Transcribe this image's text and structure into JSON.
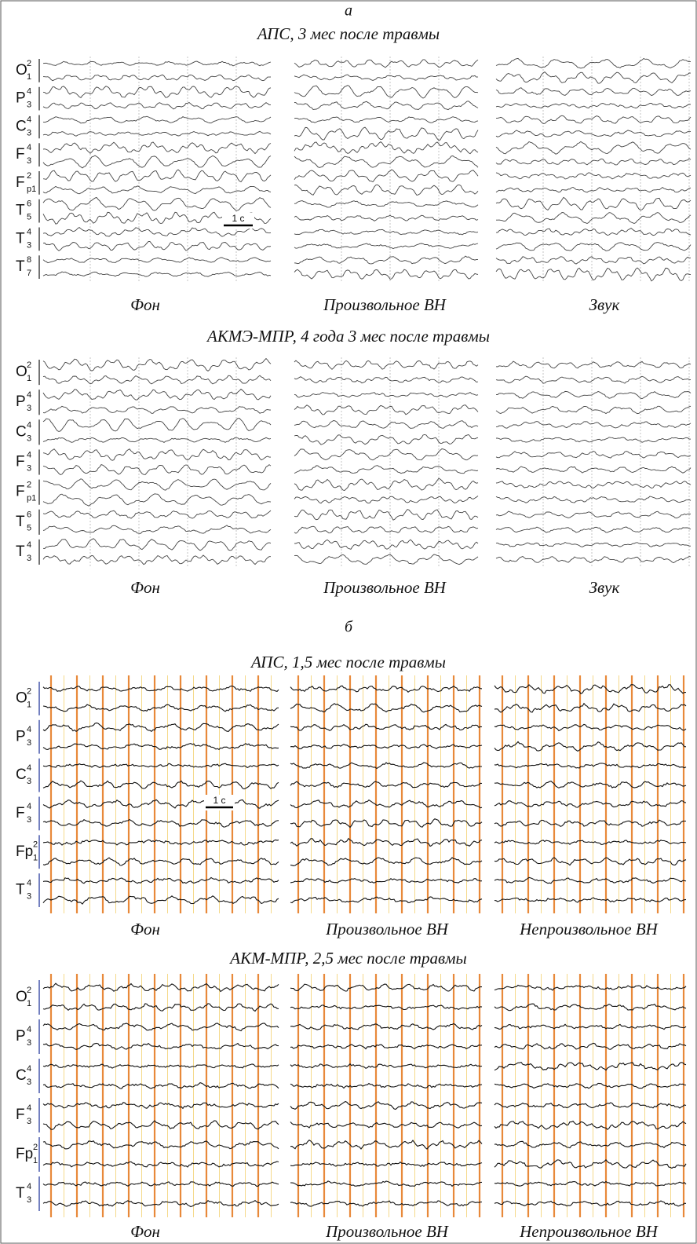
{
  "figure": {
    "sections": [
      {
        "label": "а",
        "rows": [
          {
            "title": "АПС, 3 мес после травмы",
            "panels": [
              "Фон",
              "Произвольное ВН",
              "Звук"
            ],
            "scale": "1 с",
            "channels": [
              {
                "base": "O",
                "sup": "2",
                "sub": "1"
              },
              {
                "base": "P",
                "sup": "4",
                "sub": "3"
              },
              {
                "base": "C",
                "sup": "4",
                "sub": "3"
              },
              {
                "base": "F",
                "sup": "4",
                "sub": "3"
              },
              {
                "base": "F",
                "sup": "2",
                "sub": "p1"
              },
              {
                "base": "T",
                "sup": "6",
                "sub": "5"
              },
              {
                "base": "T",
                "sup": "4",
                "sub": "3"
              },
              {
                "base": "T",
                "sup": "8",
                "sub": "7"
              }
            ]
          },
          {
            "title": "АКМЭ-МПР, 4 года 3 мес после травмы",
            "panels": [
              "Фон",
              "Произвольное ВН",
              "Звук"
            ],
            "channels": [
              {
                "base": "O",
                "sup": "2",
                "sub": "1"
              },
              {
                "base": "P",
                "sup": "4",
                "sub": "3"
              },
              {
                "base": "C",
                "sup": "4",
                "sub": "3"
              },
              {
                "base": "F",
                "sup": "4",
                "sub": "3"
              },
              {
                "base": "F",
                "sup": "2",
                "sub": "p1"
              },
              {
                "base": "T",
                "sup": "6",
                "sub": "5"
              },
              {
                "base": "T",
                "sup": "4",
                "sub": "3"
              }
            ]
          }
        ]
      },
      {
        "label": "б",
        "rows": [
          {
            "title": "АПС, 1,5 мес после травмы",
            "panels": [
              "Фон",
              "Произвольное ВН",
              "Непроизвольное ВН"
            ],
            "scale": "1 с",
            "channels": [
              {
                "base": "O",
                "sup": "2",
                "sub": "1"
              },
              {
                "base": "P",
                "sup": "4",
                "sub": "3"
              },
              {
                "base": "C",
                "sup": "4",
                "sub": "3"
              },
              {
                "base": "F",
                "sup": "4",
                "sub": "3"
              },
              {
                "base": "Fp",
                "sup": "2",
                "sub": "1"
              },
              {
                "base": "T",
                "sup": "4",
                "sub": "3"
              }
            ]
          },
          {
            "title": "АКМ-МПР, 2,5 мес после травмы",
            "panels": [
              "Фон",
              "Произвольное ВН",
              "Непроизвольное ВН"
            ],
            "channels": [
              {
                "base": "O",
                "sup": "2",
                "sub": "1"
              },
              {
                "base": "P",
                "sup": "4",
                "sub": "3"
              },
              {
                "base": "C",
                "sup": "4",
                "sub": "3"
              },
              {
                "base": "F",
                "sup": "4",
                "sub": "3"
              },
              {
                "base": "Fp",
                "sup": "2",
                "sub": "1"
              },
              {
                "base": "T",
                "sup": "4",
                "sub": "3"
              }
            ]
          }
        ]
      }
    ]
  }
}
